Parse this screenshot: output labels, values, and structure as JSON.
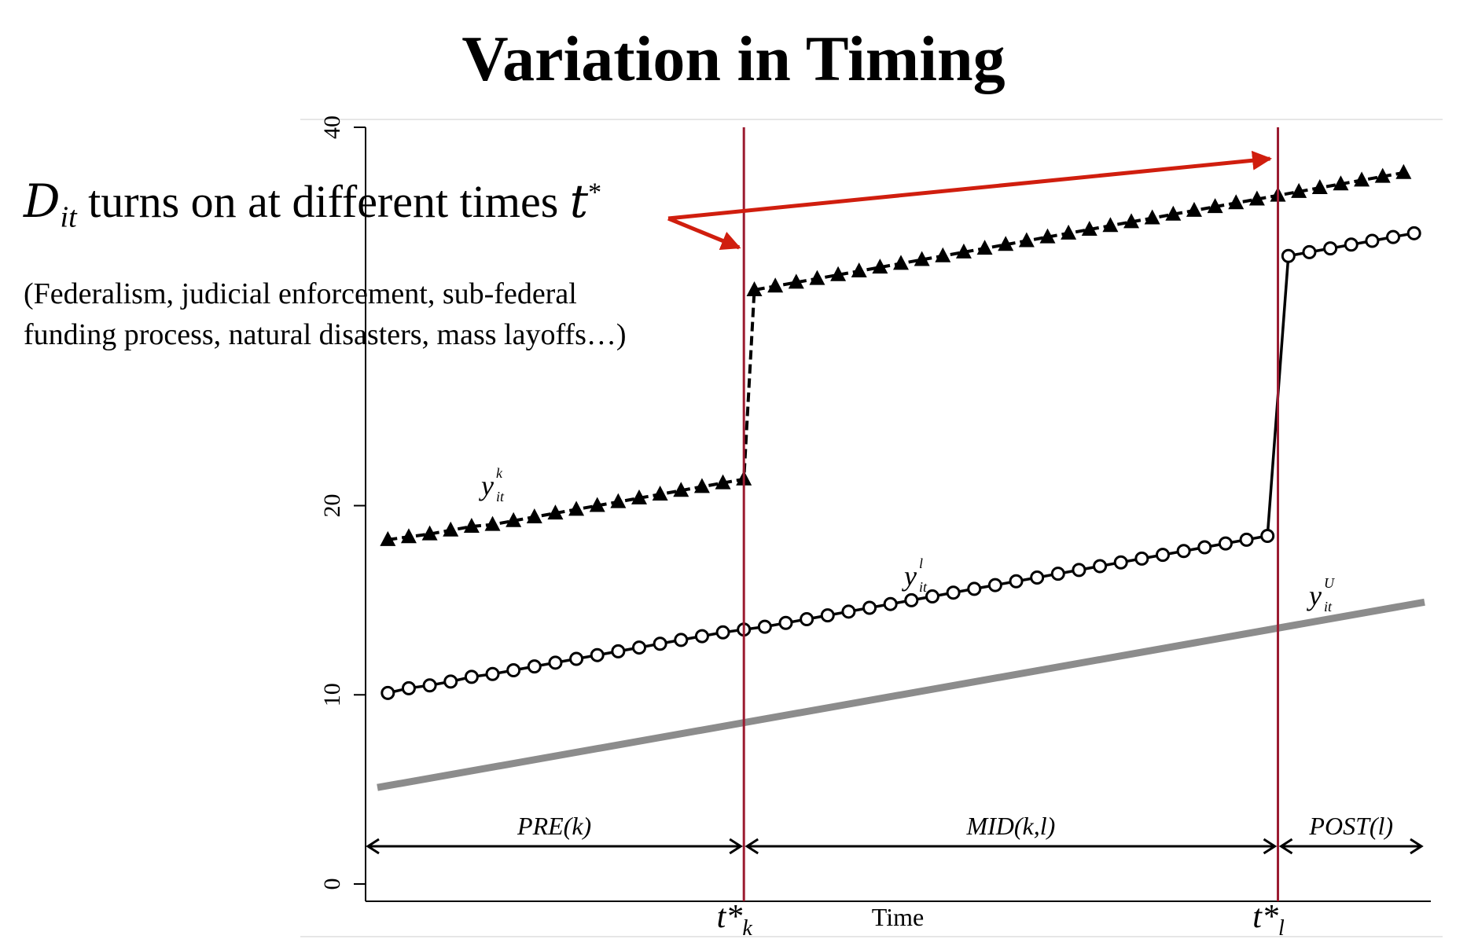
{
  "page": {
    "title": "Variation in Timing",
    "annotation": {
      "symbol_D": "D",
      "symbol_sub": "it",
      "text": "turns on at different times",
      "symbol_t": "t",
      "symbol_sup": "*",
      "examples_line1": "(Federalism, judicial enforcement, sub-federal",
      "examples_line2": "funding process, natural disasters, mass layoffs…)"
    },
    "colors": {
      "arrow": "#d01e0e",
      "vline": "#9b1b30",
      "untreated": "#8c8c8c",
      "series": "#000000"
    }
  },
  "chart_data": {
    "type": "line",
    "xlabel": "Time",
    "ylabel": "",
    "ylim": [
      0,
      40
    ],
    "yticks": [
      0,
      10,
      20,
      40
    ],
    "ytick_labels": [
      "0",
      "10",
      "20",
      "40"
    ],
    "treatment_times": [
      {
        "name": "k",
        "x": 17.5,
        "label_main": "t*",
        "label_sub": "k"
      },
      {
        "name": "l",
        "x": 43,
        "label_main": "t*",
        "label_sub": "l"
      }
    ],
    "periods": [
      {
        "label": "PRE(k)",
        "x_start": 0,
        "x_end": 17.5
      },
      {
        "label": "MID(k,l)",
        "x_start": 17.5,
        "x_end": 43
      },
      {
        "label": "POST(l)",
        "x_start": 43,
        "x_end": 50
      }
    ],
    "series": [
      {
        "name": "y^k_it",
        "label_main": "y",
        "label_sup": "k",
        "label_sub": "it",
        "marker": "triangle",
        "x": [
          0.5,
          1.5,
          2.5,
          3.5,
          4.5,
          5.5,
          6.5,
          7.5,
          8.5,
          9.5,
          10.5,
          11.5,
          12.5,
          13.5,
          14.5,
          15.5,
          16.5,
          17.5,
          18,
          19,
          20,
          21,
          22,
          23,
          24,
          25,
          26,
          27,
          28,
          29,
          30,
          31,
          32,
          33,
          34,
          35,
          36,
          37,
          38,
          39,
          40,
          41,
          42,
          43,
          44,
          45,
          46,
          47,
          48,
          49
        ],
        "values": [
          18.2,
          18.35,
          18.5,
          18.7,
          18.9,
          19.0,
          19.2,
          19.4,
          19.6,
          19.8,
          20.0,
          20.2,
          20.4,
          20.6,
          20.8,
          21.0,
          21.2,
          21.4,
          31.4,
          31.6,
          31.8,
          32.0,
          32.2,
          32.4,
          32.6,
          32.8,
          33.0,
          33.2,
          33.4,
          33.6,
          33.8,
          34.0,
          34.2,
          34.4,
          34.6,
          34.8,
          35.0,
          35.2,
          35.4,
          35.6,
          35.8,
          36.0,
          36.2,
          36.4,
          36.6,
          36.8,
          37.0,
          37.2,
          37.4,
          37.6
        ]
      },
      {
        "name": "y^l_it",
        "label_main": "y",
        "label_sup": "l",
        "label_sub": "it",
        "marker": "circle",
        "x": [
          0.5,
          1.5,
          2.5,
          3.5,
          4.5,
          5.5,
          6.5,
          7.5,
          8.5,
          9.5,
          10.5,
          11.5,
          12.5,
          13.5,
          14.5,
          15.5,
          16.5,
          17.5,
          18.5,
          19.5,
          20.5,
          21.5,
          22.5,
          23.5,
          24.5,
          25.5,
          26.5,
          27.5,
          28.5,
          29.5,
          30.5,
          31.5,
          32.5,
          33.5,
          34.5,
          35.5,
          36.5,
          37.5,
          38.5,
          39.5,
          40.5,
          41.5,
          42.5,
          43.5,
          44.5,
          45.5,
          46.5,
          47.5,
          48.5,
          49.5
        ],
        "values": [
          10.1,
          10.35,
          10.5,
          10.7,
          10.95,
          11.1,
          11.3,
          11.5,
          11.7,
          11.9,
          12.1,
          12.3,
          12.5,
          12.7,
          12.9,
          13.1,
          13.3,
          13.45,
          13.6,
          13.8,
          14.0,
          14.2,
          14.4,
          14.6,
          14.8,
          15.0,
          15.2,
          15.4,
          15.6,
          15.8,
          16.0,
          16.2,
          16.4,
          16.6,
          16.8,
          17.0,
          17.2,
          17.4,
          17.6,
          17.8,
          18.0,
          18.2,
          18.4,
          33.2,
          33.4,
          33.6,
          33.8,
          34.0,
          34.2,
          34.4
        ]
      },
      {
        "name": "y^U_it",
        "label_main": "y",
        "label_sup": "U",
        "label_sub": "it",
        "marker": "none",
        "x": [
          0,
          50
        ],
        "values": [
          5.1,
          14.9
        ]
      }
    ],
    "grid": false,
    "legend": "none"
  }
}
